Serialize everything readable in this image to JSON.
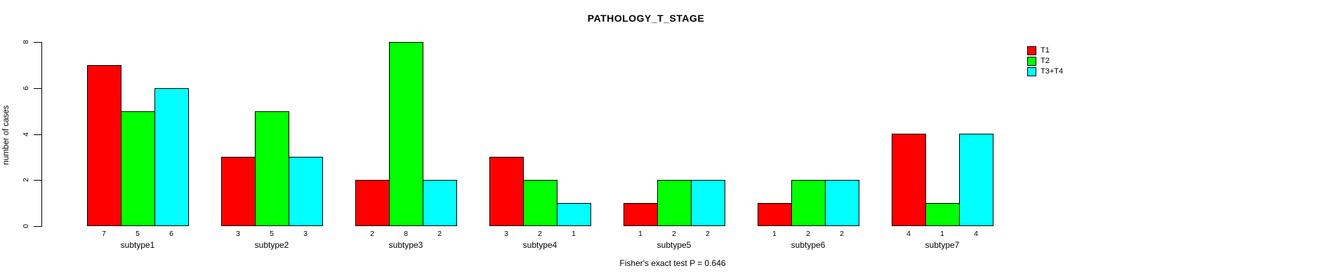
{
  "title": "PATHOLOGY_T_STAGE",
  "footer": "Fisher's exact test P = 0.646",
  "chart_data": {
    "type": "bar",
    "title": "PATHOLOGY_T_STAGE",
    "xlabel": "",
    "ylabel": "number of cases",
    "categories": [
      "subtype1",
      "subtype2",
      "subtype3",
      "subtype4",
      "subtype5",
      "subtype6",
      "subtype7"
    ],
    "series": [
      {
        "name": "T1",
        "color": "#ff0000",
        "values": [
          7,
          3,
          2,
          3,
          1,
          1,
          4
        ]
      },
      {
        "name": "T2",
        "color": "#00ff00",
        "values": [
          5,
          5,
          8,
          2,
          2,
          2,
          1
        ]
      },
      {
        "name": "T3+T4",
        "color": "#00ffff",
        "values": [
          6,
          3,
          2,
          1,
          2,
          2,
          4
        ]
      }
    ],
    "bar_value_labels": [
      [
        "7",
        "5",
        "6"
      ],
      [
        "3",
        "5",
        "3"
      ],
      [
        "2",
        "8",
        "2"
      ],
      [
        "3",
        "2",
        "1"
      ],
      [
        "1",
        "2",
        "2"
      ],
      [
        "1",
        "2",
        "2"
      ],
      [
        "4",
        "1",
        "4"
      ]
    ],
    "yticks": [
      0,
      2,
      4,
      6,
      8
    ],
    "ylim": [
      0,
      8
    ],
    "grid": false,
    "legend_position": "right",
    "annotation": "Fisher's exact test P = 0.646",
    "background_color": "#ffffff",
    "axis_color": "#000000"
  }
}
